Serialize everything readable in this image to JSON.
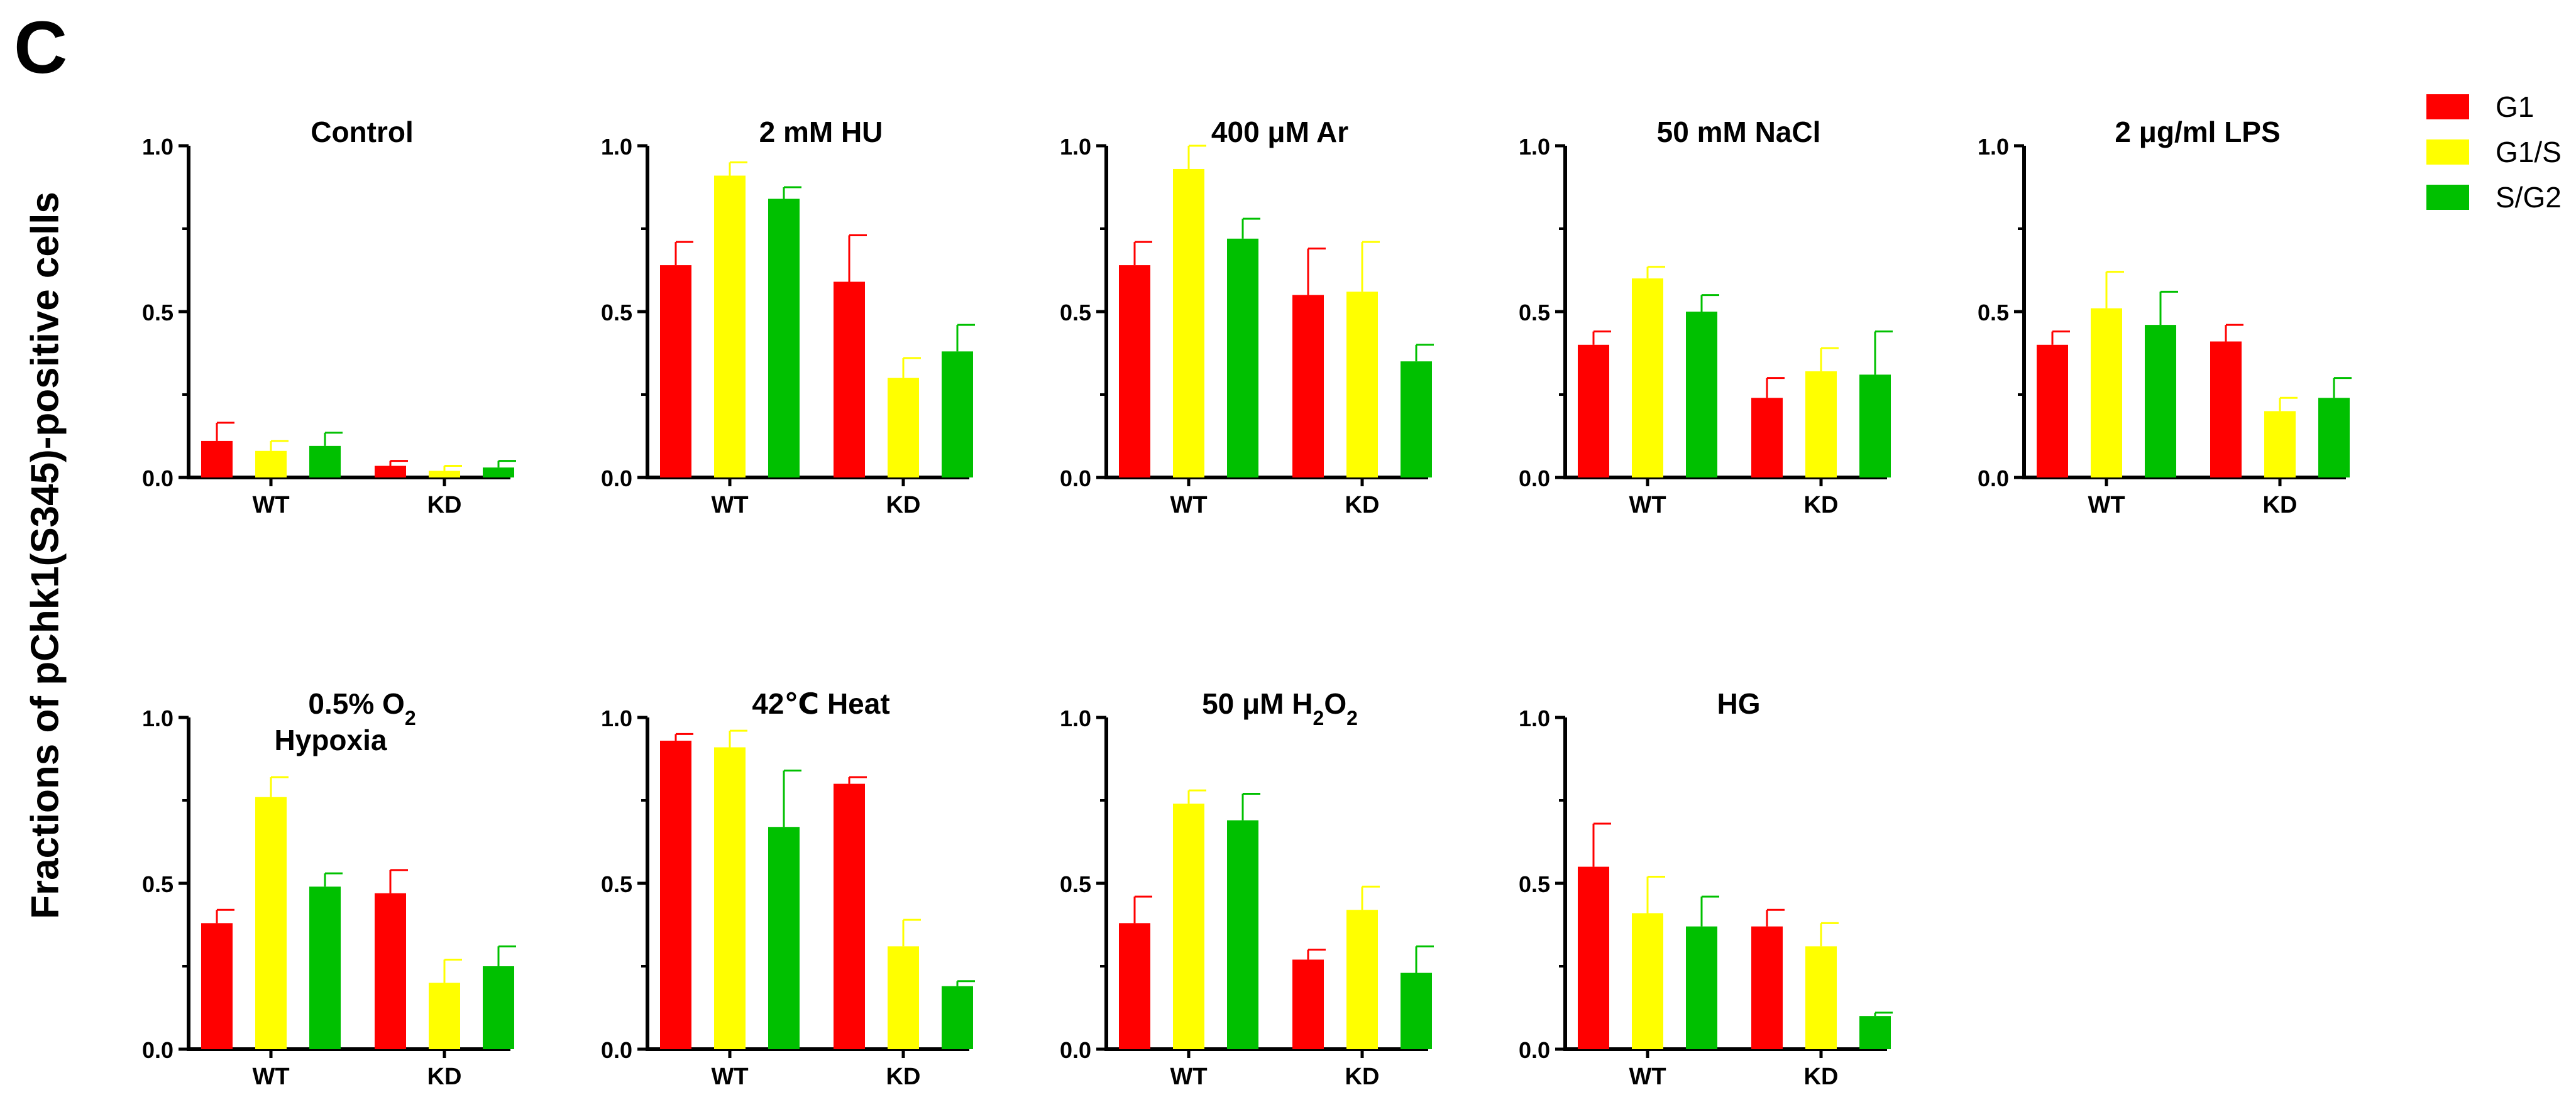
{
  "panel_label": "C",
  "y_axis_label": "Fractions of pChk1(S345)-positive cells",
  "legend": [
    {
      "label": "G1",
      "color": "#ff0000"
    },
    {
      "label": "G1/S",
      "color": "#ffff00"
    },
    {
      "label": "S/G2",
      "color": "#00c000"
    }
  ],
  "chart_data": [
    {
      "type": "bar",
      "title": "Control",
      "categories": [
        "WT",
        "KD"
      ],
      "ylim": [
        0,
        1.0
      ],
      "yticks": [
        "0.0",
        "0.5",
        "1.0"
      ],
      "series": [
        {
          "name": "G1",
          "color": "#ff0000",
          "values": [
            0.11,
            0.035
          ],
          "errors": [
            0.055,
            0.015
          ]
        },
        {
          "name": "G1/S",
          "color": "#ffff00",
          "values": [
            0.08,
            0.02
          ],
          "errors": [
            0.03,
            0.015
          ]
        },
        {
          "name": "S/G2",
          "color": "#00c000",
          "values": [
            0.095,
            0.03
          ],
          "errors": [
            0.04,
            0.02
          ]
        }
      ]
    },
    {
      "type": "bar",
      "title": "2 mM HU",
      "categories": [
        "WT",
        "KD"
      ],
      "ylim": [
        0,
        1.0
      ],
      "yticks": [
        "0.0",
        "0.5",
        "1.0"
      ],
      "series": [
        {
          "name": "G1",
          "color": "#ff0000",
          "values": [
            0.64,
            0.59
          ],
          "errors": [
            0.07,
            0.14
          ]
        },
        {
          "name": "G1/S",
          "color": "#ffff00",
          "values": [
            0.91,
            0.3
          ],
          "errors": [
            0.04,
            0.06
          ]
        },
        {
          "name": "S/G2",
          "color": "#00c000",
          "values": [
            0.84,
            0.38
          ],
          "errors": [
            0.035,
            0.08
          ]
        }
      ]
    },
    {
      "type": "bar",
      "title": "400 μM Ar",
      "categories": [
        "WT",
        "KD"
      ],
      "ylim": [
        0,
        1.0
      ],
      "yticks": [
        "0.0",
        "0.5",
        "1.0"
      ],
      "series": [
        {
          "name": "G1",
          "color": "#ff0000",
          "values": [
            0.64,
            0.55
          ],
          "errors": [
            0.07,
            0.14
          ]
        },
        {
          "name": "G1/S",
          "color": "#ffff00",
          "values": [
            0.93,
            0.56
          ],
          "errors": [
            0.07,
            0.15
          ]
        },
        {
          "name": "S/G2",
          "color": "#00c000",
          "values": [
            0.72,
            0.35
          ],
          "errors": [
            0.06,
            0.05
          ]
        }
      ]
    },
    {
      "type": "bar",
      "title": "50 mM NaCl",
      "categories": [
        "WT",
        "KD"
      ],
      "ylim": [
        0,
        1.0
      ],
      "yticks": [
        "0.0",
        "0.5",
        "1.0"
      ],
      "series": [
        {
          "name": "G1",
          "color": "#ff0000",
          "values": [
            0.4,
            0.24
          ],
          "errors": [
            0.04,
            0.06
          ]
        },
        {
          "name": "G1/S",
          "color": "#ffff00",
          "values": [
            0.6,
            0.32
          ],
          "errors": [
            0.035,
            0.07
          ]
        },
        {
          "name": "S/G2",
          "color": "#00c000",
          "values": [
            0.5,
            0.31
          ],
          "errors": [
            0.05,
            0.13
          ]
        }
      ]
    },
    {
      "type": "bar",
      "title": "2 μg/ml LPS",
      "categories": [
        "WT",
        "KD"
      ],
      "ylim": [
        0,
        1.0
      ],
      "yticks": [
        "0.0",
        "0.5",
        "1.0"
      ],
      "series": [
        {
          "name": "G1",
          "color": "#ff0000",
          "values": [
            0.4,
            0.41
          ],
          "errors": [
            0.04,
            0.05
          ]
        },
        {
          "name": "G1/S",
          "color": "#ffff00",
          "values": [
            0.51,
            0.2
          ],
          "errors": [
            0.11,
            0.04
          ]
        },
        {
          "name": "S/G2",
          "color": "#00c000",
          "values": [
            0.46,
            0.24
          ],
          "errors": [
            0.1,
            0.06
          ]
        }
      ]
    },
    {
      "type": "bar",
      "title": "0.5% O",
      "title_sub": "2",
      "title_line2": "Hypoxia",
      "categories": [
        "WT",
        "KD"
      ],
      "ylim": [
        0,
        1.0
      ],
      "yticks": [
        "0.0",
        "0.5",
        "1.0"
      ],
      "series": [
        {
          "name": "G1",
          "color": "#ff0000",
          "values": [
            0.38,
            0.47
          ],
          "errors": [
            0.04,
            0.07
          ]
        },
        {
          "name": "G1/S",
          "color": "#ffff00",
          "values": [
            0.76,
            0.2
          ],
          "errors": [
            0.06,
            0.07
          ]
        },
        {
          "name": "S/G2",
          "color": "#00c000",
          "values": [
            0.49,
            0.25
          ],
          "errors": [
            0.04,
            0.06
          ]
        }
      ]
    },
    {
      "type": "bar",
      "title": "42℃ Heat",
      "categories": [
        "WT",
        "KD"
      ],
      "ylim": [
        0,
        1.0
      ],
      "yticks": [
        "0.0",
        "0.5",
        "1.0"
      ],
      "series": [
        {
          "name": "G1",
          "color": "#ff0000",
          "values": [
            0.93,
            0.8
          ],
          "errors": [
            0.02,
            0.02
          ]
        },
        {
          "name": "G1/S",
          "color": "#ffff00",
          "values": [
            0.91,
            0.31
          ],
          "errors": [
            0.05,
            0.08
          ]
        },
        {
          "name": "S/G2",
          "color": "#00c000",
          "values": [
            0.67,
            0.19
          ],
          "errors": [
            0.17,
            0.015
          ]
        }
      ]
    },
    {
      "type": "bar",
      "title": "50 μM H",
      "title_sub": "2",
      "title_after": "O",
      "title_sub2": "2",
      "categories": [
        "WT",
        "KD"
      ],
      "ylim": [
        0,
        1.0
      ],
      "yticks": [
        "0.0",
        "0.5",
        "1.0"
      ],
      "series": [
        {
          "name": "G1",
          "color": "#ff0000",
          "values": [
            0.38,
            0.27
          ],
          "errors": [
            0.08,
            0.03
          ]
        },
        {
          "name": "G1/S",
          "color": "#ffff00",
          "values": [
            0.74,
            0.42
          ],
          "errors": [
            0.04,
            0.07
          ]
        },
        {
          "name": "S/G2",
          "color": "#00c000",
          "values": [
            0.69,
            0.23
          ],
          "errors": [
            0.08,
            0.08
          ]
        }
      ]
    },
    {
      "type": "bar",
      "title": "HG",
      "categories": [
        "WT",
        "KD"
      ],
      "ylim": [
        0,
        1.0
      ],
      "yticks": [
        "0.0",
        "0.5",
        "1.0"
      ],
      "series": [
        {
          "name": "G1",
          "color": "#ff0000",
          "values": [
            0.55,
            0.37
          ],
          "errors": [
            0.13,
            0.05
          ]
        },
        {
          "name": "G1/S",
          "color": "#ffff00",
          "values": [
            0.41,
            0.31
          ],
          "errors": [
            0.11,
            0.07
          ]
        },
        {
          "name": "S/G2",
          "color": "#00c000",
          "values": [
            0.37,
            0.1
          ],
          "errors": [
            0.09,
            0.01
          ]
        }
      ]
    }
  ]
}
